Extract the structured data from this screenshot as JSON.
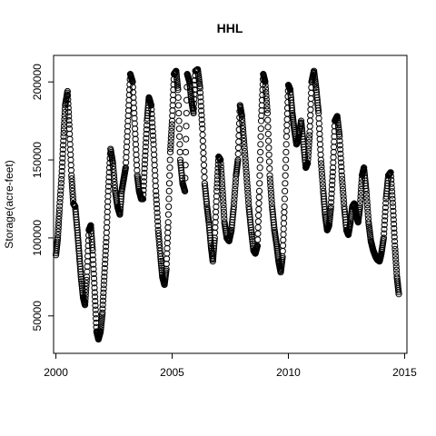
{
  "chart_data": {
    "type": "scatter",
    "title": "HHL",
    "xlabel": "",
    "ylabel": "Storage(acre-feet)",
    "xlim": [
      1999.9,
      2015.1
    ],
    "ylim": [
      26000,
      217000
    ],
    "x_ticks": [
      2000,
      2005,
      2010,
      2015
    ],
    "x_tick_labels": [
      "2000",
      "2005",
      "2010",
      "2015"
    ],
    "y_ticks": [
      50000,
      100000,
      150000,
      200000
    ],
    "y_tick_labels": [
      "50000",
      "100000",
      "150000",
      "200000"
    ],
    "grid": false,
    "marker": "open-circle",
    "series": [
      {
        "x": [
          2000.0,
          2000.08,
          2000.15,
          2000.25,
          2000.33,
          2000.4,
          2000.5,
          2000.58,
          2000.67,
          2000.75,
          2000.83,
          2000.92,
          2001.0,
          2001.08,
          2001.17,
          2001.25,
          2001.33,
          2001.42,
          2001.5,
          2001.58,
          2001.67,
          2001.75,
          2001.83,
          2001.92,
          2002.0,
          2002.08,
          2002.17,
          2002.25,
          2002.35,
          2002.45,
          2002.55,
          2002.65,
          2002.75,
          2002.83,
          2002.92,
          2003.0,
          2003.1,
          2003.2,
          2003.3,
          2003.4,
          2003.5,
          2003.58,
          2003.67,
          2003.75,
          2003.83,
          2003.92,
          2004.0,
          2004.1,
          2004.2,
          2004.3,
          2004.4,
          2004.5,
          2004.58,
          2004.67,
          2004.75,
          2004.83,
          2004.92,
          2005.0,
          2005.08,
          2005.17,
          2005.25,
          2005.35,
          2005.45,
          2005.55,
          2005.65,
          2005.75,
          2005.83,
          2005.92,
          2006.0,
          2006.1,
          2006.2,
          2006.3,
          2006.4,
          2006.5,
          2006.58,
          2006.67,
          2006.75,
          2006.83,
          2006.92,
          2007.0,
          2007.08,
          2007.17,
          2007.25,
          2007.35,
          2007.45,
          2007.55,
          2007.65,
          2007.75,
          2007.83,
          2007.92,
          2008.0,
          2008.1,
          2008.2,
          2008.3,
          2008.4,
          2008.5,
          2008.58,
          2008.67,
          2008.75,
          2008.83,
          2008.92,
          2009.0,
          2009.1,
          2009.2,
          2009.3,
          2009.4,
          2009.5,
          2009.58,
          2009.67,
          2009.75,
          2009.83,
          2009.92,
          2010.0,
          2010.08,
          2010.17,
          2010.25,
          2010.35,
          2010.45,
          2010.55,
          2010.65,
          2010.75,
          2010.83,
          2010.92,
          2011.0,
          2011.1,
          2011.2,
          2011.3,
          2011.4,
          2011.5,
          2011.58,
          2011.67,
          2011.75,
          2011.83,
          2011.92,
          2012.0,
          2012.1,
          2012.2,
          2012.3,
          2012.4,
          2012.5,
          2012.58,
          2012.67,
          2012.75,
          2012.83,
          2012.92,
          2013.0,
          2013.08,
          2013.17,
          2013.25,
          2013.35,
          2013.45,
          2013.55,
          2013.65,
          2013.75,
          2013.83,
          2013.92,
          2014.0,
          2014.1,
          2014.2,
          2014.3,
          2014.4,
          2014.5,
          2014.58,
          2014.67,
          2014.75
        ],
        "y": [
          89000,
          100000,
          118000,
          140000,
          165000,
          185000,
          194000,
          170000,
          140000,
          122000,
          120000,
          105000,
          90000,
          75000,
          62000,
          57000,
          75000,
          105000,
          108000,
          92000,
          65000,
          40000,
          35000,
          40000,
          52000,
          75000,
          100000,
          130000,
          157000,
          148000,
          130000,
          120000,
          115000,
          130000,
          138000,
          145000,
          175000,
          205000,
          200000,
          170000,
          140000,
          130000,
          125000,
          125000,
          150000,
          175000,
          190000,
          185000,
          160000,
          130000,
          105000,
          88000,
          75000,
          70000,
          80000,
          110000,
          155000,
          175000,
          205000,
          207000,
          195000,
          150000,
          135000,
          130000,
          205000,
          200000,
          188000,
          180000,
          207000,
          208000,
          196000,
          170000,
          135000,
          120000,
          110000,
          95000,
          85000,
          100000,
          130000,
          152000,
          150000,
          130000,
          110000,
          100000,
          98000,
          105000,
          120000,
          140000,
          150000,
          185000,
          178000,
          160000,
          140000,
          120000,
          105000,
          92000,
          90000,
          95000,
          130000,
          175000,
          205000,
          200000,
          180000,
          140000,
          120000,
          105000,
          95000,
          85000,
          78000,
          88000,
          120000,
          165000,
          198000,
          195000,
          180000,
          170000,
          160000,
          165000,
          175000,
          160000,
          145000,
          148000,
          168000,
          200000,
          207000,
          195000,
          180000,
          150000,
          130000,
          115000,
          105000,
          108000,
          120000,
          145000,
          175000,
          178000,
          165000,
          140000,
          120000,
          105000,
          102000,
          110000,
          120000,
          122000,
          115000,
          110000,
          120000,
          140000,
          145000,
          130000,
          110000,
          98000,
          92000,
          88000,
          86000,
          85000,
          90000,
          100000,
          125000,
          140000,
          142000,
          120000,
          95000,
          75000,
          64000
        ]
      }
    ]
  }
}
